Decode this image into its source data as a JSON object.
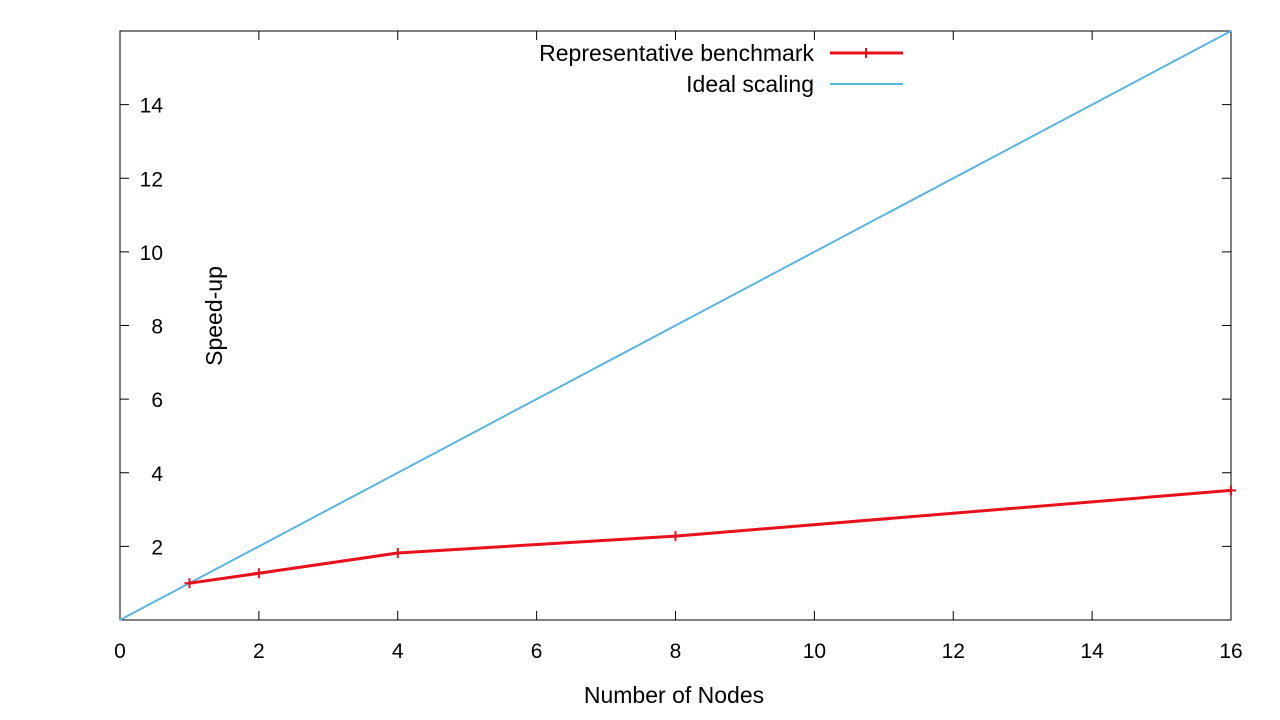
{
  "chart_data": {
    "type": "line",
    "title": "",
    "xlabel": "Number of Nodes",
    "ylabel": "Speed-up",
    "xlim": [
      0,
      16
    ],
    "ylim": [
      0,
      16
    ],
    "xticks": [
      0,
      2,
      4,
      6,
      8,
      10,
      12,
      14,
      16
    ],
    "yticks": [
      2,
      4,
      6,
      8,
      10,
      12,
      14
    ],
    "grid": false,
    "legend_position": "top-center",
    "series": [
      {
        "name": "Representative benchmark",
        "color": "#e8101a",
        "marker": "plus",
        "x": [
          1,
          2,
          4,
          8,
          16
        ],
        "y": [
          1.0,
          1.27,
          1.82,
          2.28,
          3.52
        ]
      },
      {
        "name": "Ideal scaling",
        "color": "#5ab4e0",
        "marker": "none",
        "x": [
          0,
          16
        ],
        "y": [
          0,
          16
        ]
      }
    ]
  }
}
